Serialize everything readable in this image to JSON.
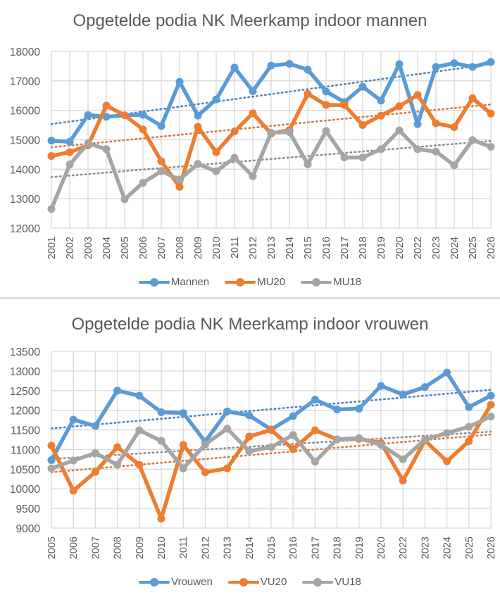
{
  "colors": {
    "series_1": "#5B9BD5",
    "series_2": "#ED7D31",
    "series_3": "#A5A5A5",
    "trend_1": "#4F81BD",
    "trend_2": "#D27A45",
    "trend_3": "#8C8C8C",
    "grid": "#D9D9D9",
    "text": "#595959"
  },
  "chart_data": [
    {
      "type": "line",
      "title": "Opgetelde podia NK Meerkamp indoor mannen",
      "xlabel": "",
      "ylabel": "",
      "ylim": [
        12000,
        18000
      ],
      "yticks": [
        "12000",
        "13000",
        "14000",
        "15000",
        "16000",
        "17000",
        "18000"
      ],
      "ytick_values": [
        12000,
        13000,
        14000,
        15000,
        16000,
        17000,
        18000
      ],
      "categories": [
        "2001",
        "2002",
        "2003",
        "2004",
        "2005",
        "2006",
        "2007",
        "2008",
        "2009",
        "2010",
        "2011",
        "2012",
        "2013",
        "2014",
        "2015",
        "2016",
        "2017",
        "2018",
        "2019",
        "2020",
        "2022",
        "2023",
        "2024",
        "2025",
        "2026"
      ],
      "grid": true,
      "legend_position": "bottom",
      "trendlines": "linear, dotted",
      "series": [
        {
          "name": "Mannen",
          "values": [
            14970,
            14930,
            15840,
            15780,
            15830,
            15850,
            15470,
            16970,
            15820,
            16370,
            17450,
            16650,
            17520,
            17580,
            17380,
            16640,
            16280,
            16800,
            16330,
            17570,
            15530,
            17470,
            17600,
            17470,
            17640
          ]
        },
        {
          "name": "MU20",
          "values": [
            14450,
            14580,
            14810,
            16160,
            15830,
            15350,
            14270,
            13400,
            15440,
            14580,
            15280,
            15900,
            15210,
            15330,
            16560,
            16180,
            16180,
            15500,
            15820,
            16140,
            16520,
            15560,
            15430,
            16410,
            15890
          ]
        },
        {
          "name": "MU18",
          "values": [
            12650,
            14160,
            14880,
            14680,
            12980,
            13540,
            13930,
            13650,
            14180,
            13930,
            14390,
            13760,
            15240,
            15260,
            14170,
            15300,
            14400,
            14400,
            14680,
            15320,
            14680,
            14600,
            14130,
            14990,
            14760
          ]
        }
      ]
    },
    {
      "type": "line",
      "title": "Opgetelde podia NK Meerkamp indoor vrouwen",
      "xlabel": "",
      "ylabel": "",
      "ylim": [
        9000,
        13500
      ],
      "yticks": [
        "9000",
        "9500",
        "10000",
        "10500",
        "11000",
        "11500",
        "12000",
        "12500",
        "13000",
        "13500"
      ],
      "ytick_values": [
        9000,
        9500,
        10000,
        10500,
        11000,
        11500,
        12000,
        12500,
        13000,
        13500
      ],
      "categories": [
        "2005",
        "2006",
        "2007",
        "2008",
        "2009",
        "2010",
        "2011",
        "2012",
        "2013",
        "2014",
        "2015",
        "2016",
        "2017",
        "2018",
        "2019",
        "2020",
        "2022",
        "2023",
        "2024",
        "2025",
        "2026"
      ],
      "grid": true,
      "legend_position": "bottom",
      "trendlines": "linear, dotted",
      "series": [
        {
          "name": "Vrouwen",
          "values": [
            10730,
            11760,
            11600,
            12500,
            12370,
            11950,
            11930,
            11200,
            11970,
            11870,
            11510,
            11850,
            12270,
            12020,
            12040,
            12620,
            12400,
            12590,
            12960,
            12080,
            12370
          ]
        },
        {
          "name": "VU20",
          "values": [
            11100,
            9950,
            10430,
            11060,
            10610,
            9240,
            11120,
            10420,
            10520,
            11330,
            11500,
            11010,
            11490,
            11260,
            11270,
            11170,
            10210,
            11230,
            10700,
            11210,
            12140
          ]
        },
        {
          "name": "VU18",
          "values": [
            10520,
            10720,
            10910,
            10610,
            11490,
            11220,
            10520,
            11130,
            11530,
            10960,
            11060,
            11370,
            10690,
            11260,
            11290,
            11120,
            10750,
            11250,
            11420,
            11580,
            11840
          ]
        }
      ]
    }
  ]
}
